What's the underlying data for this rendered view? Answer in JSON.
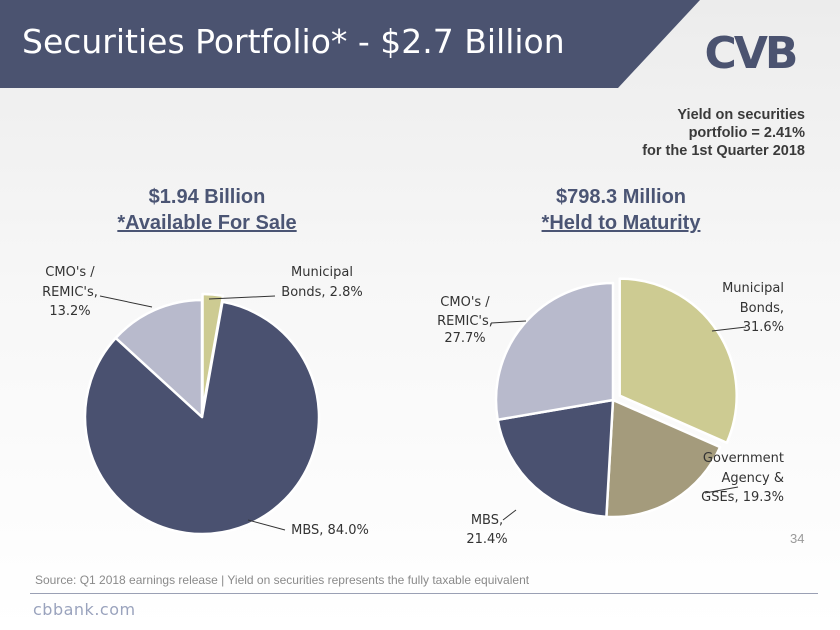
{
  "slide": {
    "title": "Securities Portfolio* - $2.7 Billion",
    "logo_text": "CVB",
    "yield_note": [
      "Yield on securities",
      "portfolio = 2.41%",
      "for the 1st Quarter 2018"
    ],
    "page_number": "34",
    "source": "Source: Q1 2018 earnings release | Yield on securities represents the fully taxable equivalent",
    "footer_url": "cbbank.com"
  },
  "colors": {
    "header": "#4b5370",
    "municipal": "#cdcb92",
    "government": "#a49b7c",
    "mbs": "#4a5170",
    "cmo": "#b8bacc",
    "heading": "#4b5574",
    "leader": "#333333"
  },
  "chart_data": [
    {
      "type": "pie",
      "title": "$1.94 Billion",
      "subtitle": "*Available For Sale",
      "slices": [
        {
          "name": "Municipal Bonds",
          "value": 2.8,
          "label_lines": [
            "Municipal",
            "Bonds, 2.8%"
          ],
          "color": "municipal"
        },
        {
          "name": "MBS",
          "value": 84.0,
          "label_lines": [
            "MBS, 84.0%"
          ],
          "color": "mbs"
        },
        {
          "name": "CMO's / REMIC's",
          "value": 13.2,
          "label_lines": [
            "CMO's /",
            "REMIC's,",
            "13.2%"
          ],
          "color": "cmo"
        }
      ],
      "exploded": [
        "Municipal Bonds"
      ]
    },
    {
      "type": "pie",
      "title": "$798.3 Million",
      "subtitle": "*Held to Maturity",
      "slices": [
        {
          "name": "Municipal Bonds",
          "value": 31.6,
          "label_lines": [
            "Municipal",
            "Bonds,",
            "31.6%"
          ],
          "color": "municipal"
        },
        {
          "name": "Government Agency & GSEs",
          "value": 19.3,
          "label_lines": [
            "Government",
            "Agency &",
            "GSEs, 19.3%"
          ],
          "color": "government"
        },
        {
          "name": "MBS",
          "value": 21.4,
          "label_lines": [
            "MBS,",
            "21.4%"
          ],
          "color": "mbs"
        },
        {
          "name": "CMO's / REMIC's",
          "value": 27.7,
          "label_lines": [
            "CMO's /",
            "REMIC's,",
            "27.7%"
          ],
          "color": "cmo"
        }
      ],
      "exploded": [
        "Municipal Bonds"
      ]
    }
  ]
}
